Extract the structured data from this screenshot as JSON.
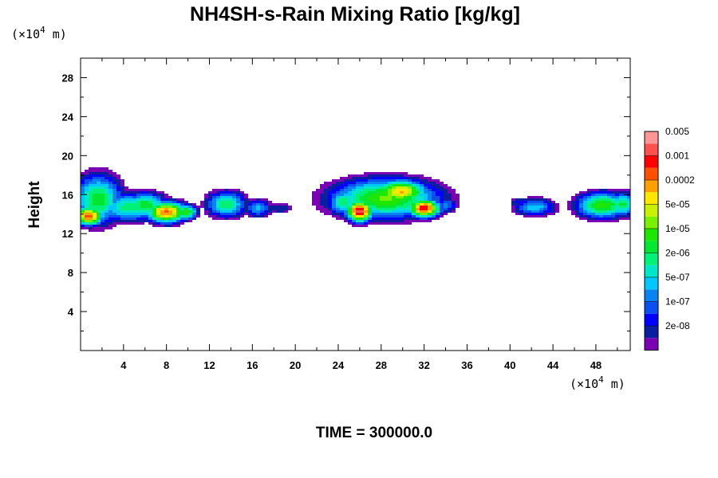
{
  "chart_data": {
    "type": "heatmap",
    "title": "NH4SH-s-Rain Mixing Ratio [kg/kg]",
    "footer": "TIME = 300000.0",
    "ylabel": "Height",
    "x_unit": {
      "prefix": "(×10",
      "exp": "4",
      "suffix": " m)"
    },
    "y_unit": {
      "prefix": "(×10",
      "exp": "4",
      "suffix": " m)"
    },
    "xlim": [
      0,
      51.2
    ],
    "ylim": [
      0,
      30
    ],
    "x_ticks": [
      4,
      8,
      12,
      16,
      20,
      24,
      28,
      32,
      36,
      40,
      44,
      48
    ],
    "x_tick_labels": [
      "4",
      "8",
      "12",
      "16",
      "20",
      "24",
      "28",
      "32",
      "36",
      "40",
      "44",
      "48"
    ],
    "y_ticks": [
      4,
      8,
      12,
      16,
      20,
      24,
      28
    ],
    "y_tick_labels": [
      "4",
      "8",
      "12",
      "16",
      "20",
      "24",
      "28"
    ],
    "colorbar": {
      "colors": [
        "#7a00b4",
        "#0a1ea0",
        "#0000ff",
        "#0a50f0",
        "#0a82f0",
        "#00c8ff",
        "#00e6c8",
        "#00f078",
        "#00e632",
        "#1ee600",
        "#78f000",
        "#c8f000",
        "#ffe600",
        "#ffa000",
        "#ff5000",
        "#ff0000",
        "#ff5050",
        "#ff9696"
      ],
      "labels": [
        "2e-08",
        "1e-07",
        "5e-07",
        "2e-06",
        "1e-05",
        "5e-05",
        "0.0002",
        "0.001",
        "0.005"
      ]
    },
    "blobs": [
      {
        "x": 1.6,
        "y": 15.5,
        "sx": 1.7,
        "sy": 1.9,
        "v": 0.55
      },
      {
        "x": 0.8,
        "y": 13.8,
        "sx": 1.0,
        "sy": 0.7,
        "v": 0.85
      },
      {
        "x": 4.5,
        "y": 14.7,
        "sx": 2.0,
        "sy": 1.1,
        "v": 0.5
      },
      {
        "x": 8.0,
        "y": 14.2,
        "sx": 1.4,
        "sy": 0.8,
        "v": 0.82
      },
      {
        "x": 6.0,
        "y": 14.9,
        "sx": 1.5,
        "sy": 1.0,
        "v": 0.55
      },
      {
        "x": 9.8,
        "y": 14.2,
        "sx": 0.8,
        "sy": 0.6,
        "v": 0.6
      },
      {
        "x": 13.6,
        "y": 15.0,
        "sx": 1.4,
        "sy": 1.0,
        "v": 0.5
      },
      {
        "x": 16.5,
        "y": 14.6,
        "sx": 1.0,
        "sy": 0.7,
        "v": 0.38
      },
      {
        "x": 18.6,
        "y": 14.6,
        "sx": 1.0,
        "sy": 0.5,
        "v": 0.22
      },
      {
        "x": 28.4,
        "y": 15.6,
        "sx": 3.8,
        "sy": 1.5,
        "v": 0.62
      },
      {
        "x": 29.8,
        "y": 16.3,
        "sx": 1.8,
        "sy": 0.9,
        "v": 0.76
      },
      {
        "x": 26.0,
        "y": 14.3,
        "sx": 0.9,
        "sy": 0.8,
        "v": 0.95
      },
      {
        "x": 32.0,
        "y": 14.6,
        "sx": 1.1,
        "sy": 0.7,
        "v": 0.9
      },
      {
        "x": 24.6,
        "y": 15.2,
        "sx": 1.2,
        "sy": 1.0,
        "v": 0.5
      },
      {
        "x": 34.0,
        "y": 14.9,
        "sx": 0.8,
        "sy": 0.6,
        "v": 0.35
      },
      {
        "x": 42.3,
        "y": 14.7,
        "sx": 1.5,
        "sy": 0.7,
        "v": 0.4
      },
      {
        "x": 40.8,
        "y": 15.2,
        "sx": 0.7,
        "sy": 0.4,
        "v": 0.25
      },
      {
        "x": 48.6,
        "y": 14.9,
        "sx": 1.8,
        "sy": 1.0,
        "v": 0.6
      },
      {
        "x": 50.5,
        "y": 15.0,
        "sx": 1.2,
        "sy": 0.9,
        "v": 0.52
      }
    ]
  }
}
